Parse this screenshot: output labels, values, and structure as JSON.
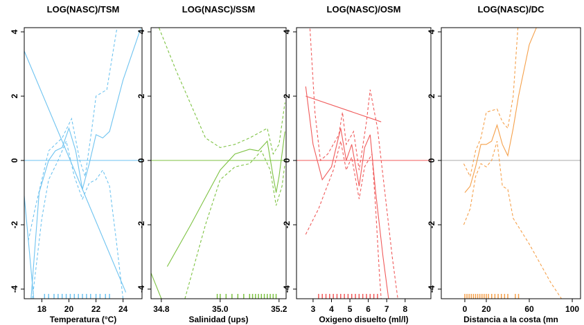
{
  "chart_data": [
    {
      "type": "line",
      "title": "LOG(NASC)/TSM",
      "x_label": "Temperatura (°C)",
      "color": "#6ec3f0",
      "hline": 0,
      "hline_color": "#6ec3f0",
      "xlim": [
        16.7,
        25.4
      ],
      "xticks": [
        18,
        20,
        22,
        24
      ],
      "ylim": [
        -4.3,
        4.13
      ],
      "yticks": [
        -4,
        -2,
        0,
        2,
        4
      ],
      "series": [
        {
          "style": "solid",
          "x": [
            17.2,
            17.8,
            18.5,
            19,
            19.5,
            20,
            20.5,
            21,
            21.5,
            22,
            22.5,
            23,
            24,
            25.3
          ],
          "values": [
            -4.3,
            -1,
            0,
            0.3,
            0.4,
            1.0,
            0.3,
            -0.9,
            -0.1,
            0.8,
            0.7,
            0.9,
            2.5,
            4.1
          ]
        },
        {
          "style": "dashed",
          "x": [
            17,
            17.5,
            18.5,
            19.5,
            20.2,
            20.8,
            21.2,
            21.7,
            22,
            22.8,
            23.5,
            24
          ],
          "values": [
            -2.5,
            -1.5,
            0.3,
            0.7,
            1.3,
            0,
            -0.5,
            1.0,
            2.0,
            2.2,
            4.0,
            5
          ]
        },
        {
          "style": "dashed",
          "x": [
            17.3,
            18,
            18.5,
            19.2,
            19.8,
            20.4,
            21,
            21.5,
            22,
            22.5,
            23,
            23.5,
            24
          ],
          "values": [
            -4.3,
            -1.8,
            -0.6,
            0,
            0.6,
            -0.5,
            -1.2,
            -0.7,
            -0.6,
            -0.3,
            -0.8,
            -2.5,
            -4.3
          ]
        },
        {
          "style": "solid",
          "x": [
            16.7,
            24.2
          ],
          "values": [
            3.4,
            -4.1
          ]
        },
        {
          "style": "solid",
          "x": [
            16.7,
            17.4
          ],
          "values": [
            -1.1,
            -4.3
          ]
        }
      ],
      "rug": [
        18.2,
        18.5,
        18.9,
        19.2,
        19.5,
        19.8,
        20.1,
        20.4,
        20.7,
        21.0,
        21.3,
        21.6,
        22.0,
        22.3,
        22.7,
        23.0
      ]
    },
    {
      "type": "line",
      "title": "LOG(NASC)/SSM",
      "x_label": "Salinidad (ups)",
      "color": "#7dc242",
      "hline": 0,
      "hline_color": "#7dc242",
      "xlim": [
        34.765,
        35.224
      ],
      "xticks": [
        {
          "value": 34.8,
          "label": "34.8"
        },
        {
          "value": 35.0,
          "label": "35.0"
        },
        {
          "value": 35.2,
          "label": "35.2"
        }
      ],
      "ylim": [
        -4.3,
        4.13
      ],
      "yticks": [
        -4,
        -2,
        0,
        2,
        4
      ],
      "series": [
        {
          "style": "solid",
          "x": [
            34.82,
            34.9,
            35.0,
            35.05,
            35.1,
            35.13,
            35.16,
            35.18,
            35.19,
            35.2,
            35.22
          ],
          "values": [
            -3.3,
            -2,
            -0.3,
            0.2,
            0.35,
            0.3,
            0.6,
            -0.5,
            -1.0,
            -0.5,
            0.9
          ]
        },
        {
          "style": "dashed",
          "x": [
            34.78,
            34.85,
            34.95,
            35.0,
            35.05,
            35.1,
            35.14,
            35.16,
            35.18,
            35.2,
            35.22
          ],
          "values": [
            4.4,
            2.8,
            0.7,
            0.4,
            0.5,
            0.7,
            0.9,
            1.0,
            0.2,
            0.5,
            1.8
          ]
        },
        {
          "style": "dashed",
          "x": [
            34.88,
            34.95,
            35.0,
            35.05,
            35.1,
            35.14,
            35.17,
            35.19,
            35.21,
            35.22
          ],
          "values": [
            -4.3,
            -2,
            -0.6,
            -0.2,
            -0.1,
            0.3,
            -0.3,
            -1.4,
            -0.8,
            -0.1
          ]
        },
        {
          "style": "solid",
          "x": [
            34.765,
            34.8
          ],
          "values": [
            -3.5,
            -4.3
          ]
        }
      ],
      "rug": [
        34.99,
        35.0,
        35.02,
        35.04,
        35.06,
        35.08,
        35.1,
        35.11,
        35.12,
        35.13,
        35.14,
        35.15,
        35.16,
        35.17,
        35.18,
        35.19
      ]
    },
    {
      "type": "line",
      "title": "LOG(NASC)/OSM",
      "x_label": "Oxigeno disuelto (ml/l)",
      "color": "#f05a5a",
      "hline": 0,
      "hline_color": "#f05a5a",
      "xlim": [
        2.1,
        9.4
      ],
      "xticks": [
        3,
        4,
        5,
        6,
        7,
        8
      ],
      "ylim": [
        -4.3,
        4.13
      ],
      "yticks": [
        -4,
        -2,
        0,
        2,
        4
      ],
      "series": [
        {
          "style": "solid",
          "x": [
            2.6,
            3,
            3.5,
            4,
            4.5,
            4.8,
            5.1,
            5.5,
            5.8,
            6.1,
            6.4,
            6.8,
            7.1
          ],
          "values": [
            2.3,
            0.5,
            -0.6,
            -0.2,
            1.0,
            0,
            0.5,
            -0.8,
            0.4,
            0.8,
            -1,
            -3,
            -4.3
          ]
        },
        {
          "style": "dashed",
          "x": [
            2.8,
            3.1,
            3.4,
            3.8,
            4.4,
            4.6,
            4.8,
            5.2,
            5.5,
            5.9,
            6.1,
            6.5,
            6.9,
            7.3,
            7.6
          ],
          "values": [
            4.4,
            1.5,
            0,
            0.2,
            0.8,
            1.5,
            0.5,
            0.9,
            -0.3,
            1.2,
            2.2,
            1,
            -1,
            -3,
            -4.3
          ]
        },
        {
          "style": "dashed",
          "x": [
            2.6,
            3.3,
            3.7,
            4.1,
            4.5,
            4.8,
            5.1,
            5.5,
            5.8,
            6.2,
            6.4,
            6.6,
            6.7
          ],
          "values": [
            -2.3,
            -1.5,
            -0.9,
            -0.3,
            0.6,
            -0.3,
            0.1,
            -1.2,
            -0.2,
            0.2,
            -1.5,
            -3.5,
            -4.3
          ]
        },
        {
          "style": "solid",
          "x": [
            2.6,
            6.7
          ],
          "values": [
            2.0,
            1.2
          ]
        }
      ],
      "rug": [
        3.3,
        3.5,
        3.7,
        3.9,
        4.1,
        4.3,
        4.5,
        4.7,
        4.9,
        5.1,
        5.3,
        5.5,
        5.7,
        5.9,
        6.1,
        6.3,
        6.5
      ]
    },
    {
      "type": "line",
      "title": "LOG(NASC)/DC",
      "x_label": "Distancia a la costa (mn",
      "color": "#f5a04a",
      "hline": 0,
      "hline_color": "#aaaaaa",
      "xlim": [
        -21.9,
        107.7
      ],
      "xticks": [
        0,
        20,
        60,
        100
      ],
      "ylim": [
        -4.3,
        4.13
      ],
      "yticks": [
        -4,
        -2,
        0,
        2,
        4
      ],
      "series": [
        {
          "style": "solid",
          "x": [
            0,
            5,
            10,
            15,
            20,
            25,
            30,
            35,
            40,
            45,
            50,
            60,
            70
          ],
          "values": [
            -1.0,
            -0.8,
            -0.2,
            0.5,
            0.5,
            0.6,
            1.1,
            0.5,
            0.15,
            1.0,
            2.0,
            3.6,
            4.4
          ]
        },
        {
          "style": "dashed",
          "x": [
            -1,
            5,
            10,
            15,
            20,
            30,
            35,
            40,
            45,
            50
          ],
          "values": [
            -0.1,
            -0.5,
            0.3,
            0.7,
            1.5,
            1.6,
            1.2,
            1.0,
            2.0,
            4.4
          ]
        },
        {
          "style": "dashed",
          "x": [
            -1,
            5,
            10,
            15,
            20,
            25,
            30,
            35,
            40,
            45,
            60,
            70,
            80,
            90
          ],
          "values": [
            -2.0,
            -1.5,
            -0.5,
            -0.1,
            -0.2,
            0,
            0.6,
            -0.8,
            -0.9,
            -1.8,
            -2.6,
            -3.2,
            -3.8,
            -4.3
          ]
        }
      ],
      "rug": [
        0,
        2,
        4,
        6,
        8,
        10,
        12,
        14,
        16,
        18,
        20,
        22,
        25,
        28,
        31,
        34,
        37,
        40,
        47,
        50
      ]
    }
  ]
}
